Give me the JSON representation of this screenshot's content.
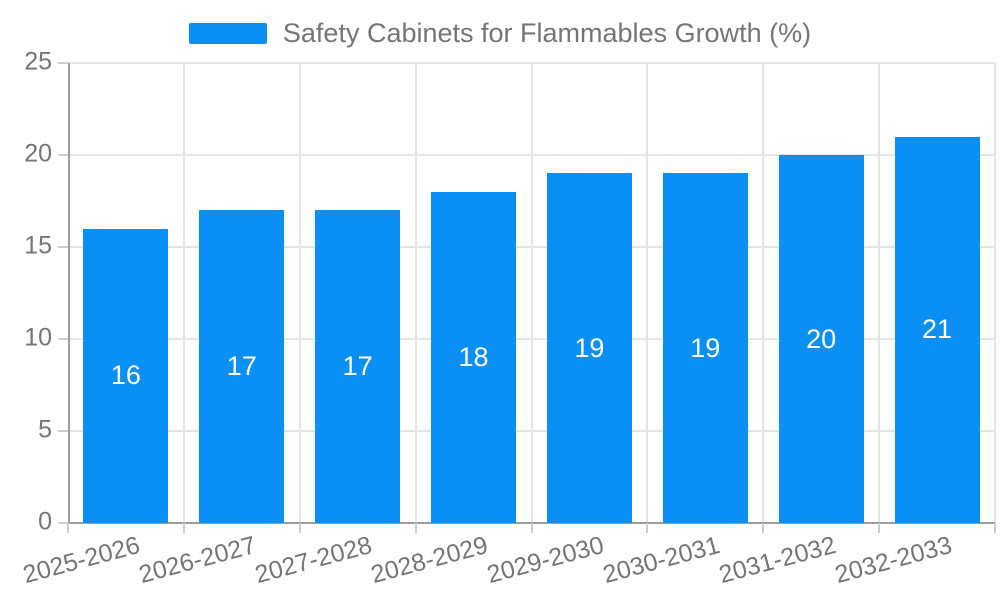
{
  "legend": {
    "label": "Safety Cabinets for Flammables Growth (%)"
  },
  "chart_data": {
    "type": "bar",
    "title": "Safety Cabinets for Flammables Growth (%)",
    "categories": [
      "2025-2026",
      "2026-2027",
      "2027-2028",
      "2028-2029",
      "2029-2030",
      "2030-2031",
      "2031-2032",
      "2032-2033"
    ],
    "values": [
      16,
      17,
      17,
      18,
      19,
      19,
      20,
      21
    ],
    "xlabel": "",
    "ylabel": "",
    "ylim": [
      0,
      25
    ],
    "yticks": [
      0,
      5,
      10,
      15,
      20,
      25
    ],
    "grid": true,
    "legend_position": "top-center",
    "bar_color": "#0A8FF5",
    "value_label_color": "#ffffff",
    "axis_text_color": "#757575",
    "grid_color": "#e5e5e5",
    "axis_line_color": "#9e9e9e"
  }
}
